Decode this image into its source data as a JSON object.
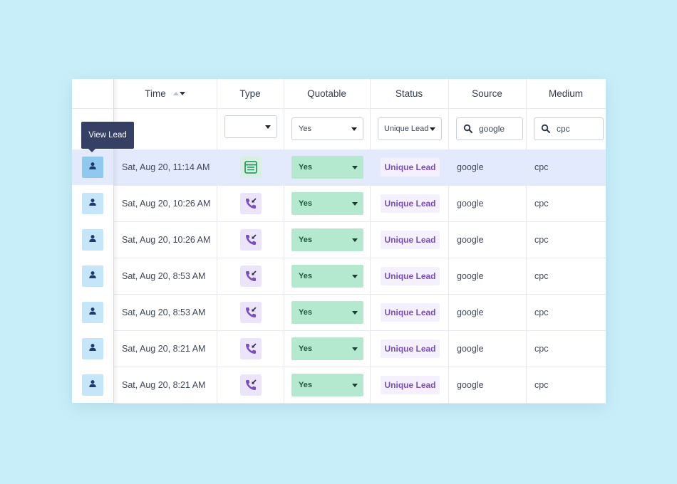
{
  "columns": {
    "time": "Time",
    "type": "Type",
    "quotable": "Quotable",
    "status": "Status",
    "source": "Source",
    "medium": "Medium"
  },
  "filters": {
    "type": "",
    "quotable": "Yes",
    "status": "Unique Lead",
    "source": "google",
    "medium": "cpc"
  },
  "tooltip": "View Lead",
  "icons": {
    "view": "person-icon",
    "form": "form-icon",
    "call": "incoming-call-icon",
    "search": "search-icon",
    "sort": "sort-icon"
  },
  "colors": {
    "background": "#c8eef9",
    "highlight_row": "#e3eafb",
    "quotable_bg": "#b4e8cf",
    "status_bg": "#f5f0fd",
    "status_text": "#7b4fba",
    "tooltip_bg": "#363f64"
  },
  "rows": [
    {
      "time": "Sat, Aug 20, 11:14 AM",
      "type": "form",
      "quotable": "Yes",
      "status": "Unique Lead",
      "source": "google",
      "medium": "cpc"
    },
    {
      "time": "Sat, Aug 20, 10:26 AM",
      "type": "call",
      "quotable": "Yes",
      "status": "Unique Lead",
      "source": "google",
      "medium": "cpc"
    },
    {
      "time": "Sat, Aug 20, 10:26 AM",
      "type": "call",
      "quotable": "Yes",
      "status": "Unique Lead",
      "source": "google",
      "medium": "cpc"
    },
    {
      "time": "Sat, Aug 20, 8:53 AM",
      "type": "call",
      "quotable": "Yes",
      "status": "Unique Lead",
      "source": "google",
      "medium": "cpc"
    },
    {
      "time": "Sat, Aug 20, 8:53 AM",
      "type": "call",
      "quotable": "Yes",
      "status": "Unique Lead",
      "source": "google",
      "medium": "cpc"
    },
    {
      "time": "Sat, Aug 20, 8:21 AM",
      "type": "call",
      "quotable": "Yes",
      "status": "Unique Lead",
      "source": "google",
      "medium": "cpc"
    },
    {
      "time": "Sat, Aug 20, 8:21 AM",
      "type": "call",
      "quotable": "Yes",
      "status": "Unique Lead",
      "source": "google",
      "medium": "cpc"
    }
  ]
}
